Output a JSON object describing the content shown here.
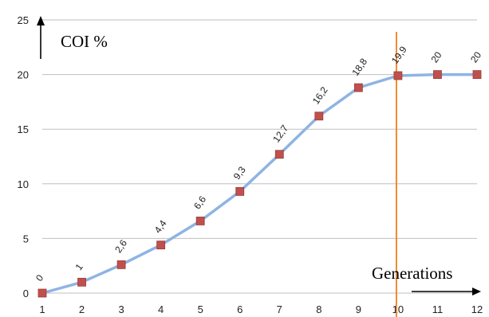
{
  "chart_data": {
    "type": "line",
    "x": [
      1,
      2,
      3,
      4,
      5,
      6,
      7,
      8,
      9,
      10,
      11,
      12
    ],
    "series": [
      {
        "values": [
          0,
          1,
          2.6,
          4.4,
          6.6,
          9.3,
          12.7,
          16.2,
          18.8,
          19.9,
          20,
          20
        ],
        "data_labels": [
          "0",
          "1",
          "2,6",
          "4,4",
          "6,6",
          "9,3",
          "12,7",
          "16,2",
          "18,8",
          "19,9",
          "20",
          "20"
        ]
      }
    ],
    "xlim": [
      1,
      12
    ],
    "ylim": [
      0,
      25
    ],
    "y_ticks": [
      0,
      5,
      10,
      15,
      20,
      25
    ],
    "x_ticks": [
      1,
      2,
      3,
      4,
      5,
      6,
      7,
      8,
      9,
      10,
      11,
      12
    ],
    "ylabel": "COI %",
    "xlabel": "Generations",
    "grid": "horizontal",
    "vertical_marker_x": 10,
    "colors": {
      "line": "#8eb4e3",
      "marker": "#c0504d",
      "marker_edge": "#9b3b38",
      "vertical_marker": "#f07f1e",
      "grid": "#bfbfbf"
    }
  }
}
